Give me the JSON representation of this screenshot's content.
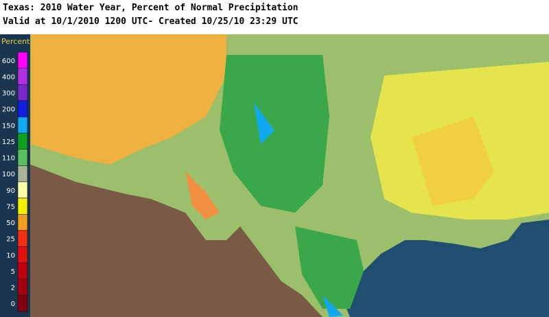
{
  "header": {
    "title": "Texas: 2010 Water Year, Percent of Normal Precipitation",
    "subtitle": "Valid at 10/1/2010 1200 UTC- Created 10/25/10 23:29 UTC"
  },
  "legend": {
    "title": "Percent",
    "items": [
      {
        "label": "600",
        "color": "#ff00ff"
      },
      {
        "label": "400",
        "color": "#b030e0"
      },
      {
        "label": "300",
        "color": "#7a28c8"
      },
      {
        "label": "200",
        "color": "#1020e0"
      },
      {
        "label": "150",
        "color": "#10a8f0"
      },
      {
        "label": "125",
        "color": "#10a020"
      },
      {
        "label": "110",
        "color": "#58c060"
      },
      {
        "label": "100",
        "color": "#a8b498"
      },
      {
        "label": "90",
        "color": "#ffffa8"
      },
      {
        "label": "75",
        "color": "#f0f000"
      },
      {
        "label": "50",
        "color": "#f0a020"
      },
      {
        "label": "25",
        "color": "#f03010"
      },
      {
        "label": "10",
        "color": "#e01010"
      },
      {
        "label": "5",
        "color": "#c00010"
      },
      {
        "label": "2",
        "color": "#a00010"
      },
      {
        "label": "0",
        "color": "#800010"
      }
    ]
  }
}
